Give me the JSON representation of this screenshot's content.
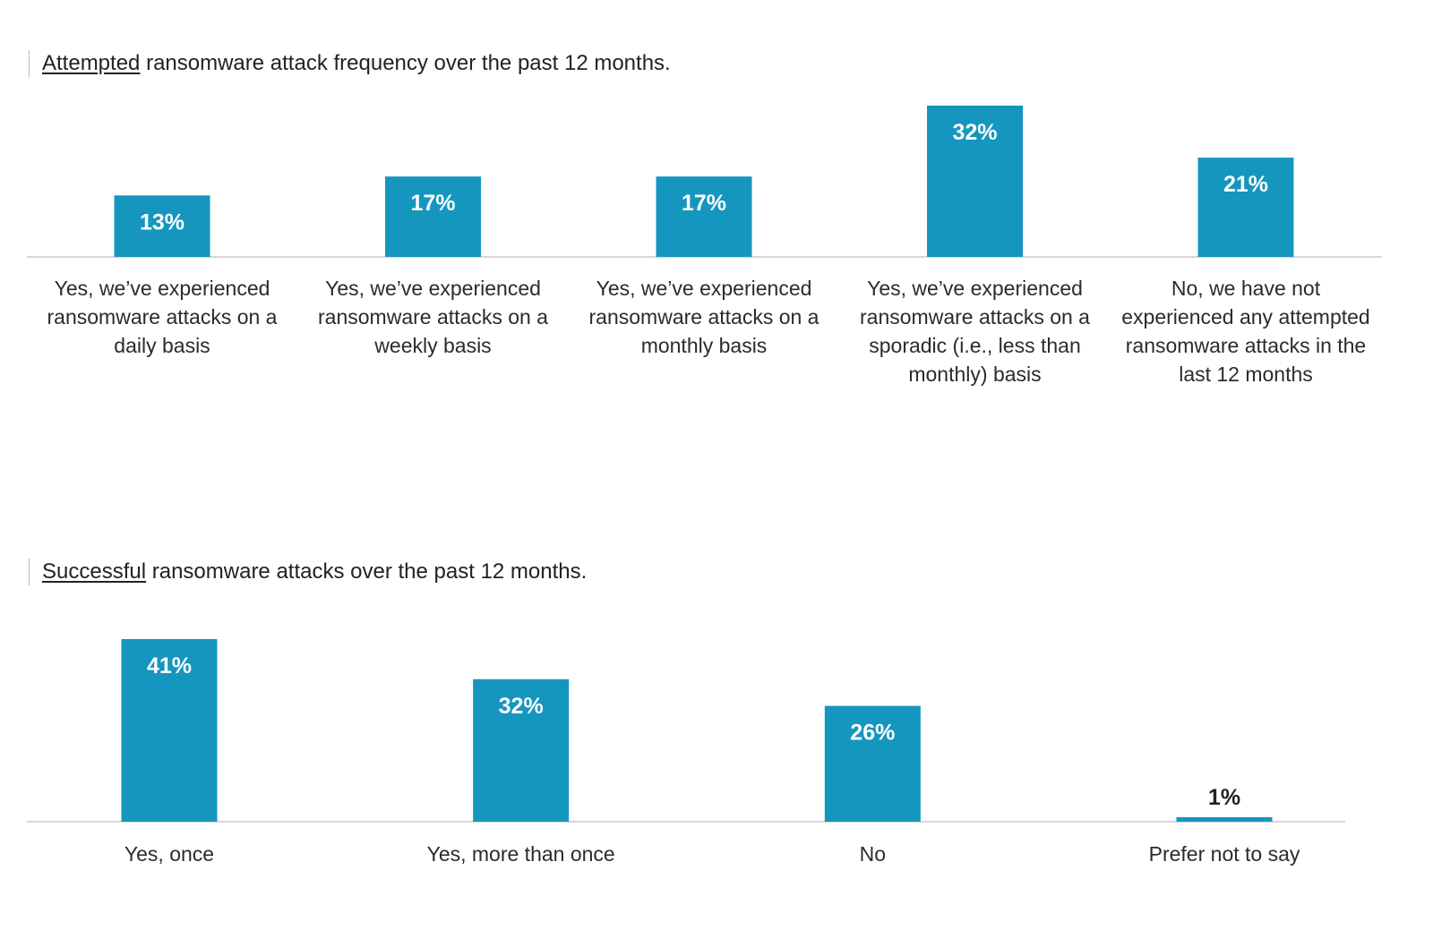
{
  "chart_data": [
    {
      "type": "bar",
      "title_emphasis": "Attempted",
      "title_rest": " ransomware attack frequency over the past 12 months.",
      "categories": [
        "Yes, we’ve experienced ransomware attacks on a daily basis",
        "Yes, we’ve experienced ransomware attacks on a weekly basis",
        "Yes, we’ve experienced ransomware attacks on a monthly basis",
        "Yes, we’ve experienced ransomware attacks on a sporadic (i.e., less than monthly) basis",
        "No, we have not experienced any attempted ransomware attacks in the last 12 months"
      ],
      "category_lines": [
        [
          "Yes, we’ve experienced",
          "ransomware attacks on a",
          "daily basis"
        ],
        [
          "Yes, we’ve experienced",
          "ransomware attacks on a",
          "weekly basis"
        ],
        [
          "Yes, we’ve experienced",
          "ransomware attacks on a",
          "monthly basis"
        ],
        [
          "Yes, we’ve experienced",
          "ransomware attacks on a",
          "sporadic (i.e., less than",
          "monthly) basis"
        ],
        [
          "No, we have not",
          "experienced any attempted",
          "ransomware attacks in the",
          "last 12 months"
        ]
      ],
      "values": [
        13,
        17,
        17,
        32,
        21
      ],
      "value_labels": [
        "13%",
        "17%",
        "17%",
        "32%",
        "21%"
      ],
      "unit": "%",
      "ylim": [
        0,
        32
      ],
      "grid": false,
      "legend": "none",
      "bar_color": "#1596bf"
    },
    {
      "type": "bar",
      "title_emphasis": "Successful",
      "title_rest": " ransomware attacks over the past 12 months.",
      "categories": [
        "Yes, once",
        "Yes, more than once",
        "No",
        "Prefer not to say"
      ],
      "category_lines": [
        [
          "Yes, once"
        ],
        [
          "Yes, more than once"
        ],
        [
          "No"
        ],
        [
          "Prefer not to say"
        ]
      ],
      "values": [
        41,
        32,
        26,
        1
      ],
      "value_labels": [
        "41%",
        "32%",
        "26%",
        "1%"
      ],
      "unit": "%",
      "ylim": [
        0,
        41
      ],
      "grid": false,
      "legend": "none",
      "bar_color": "#1596bf"
    }
  ]
}
